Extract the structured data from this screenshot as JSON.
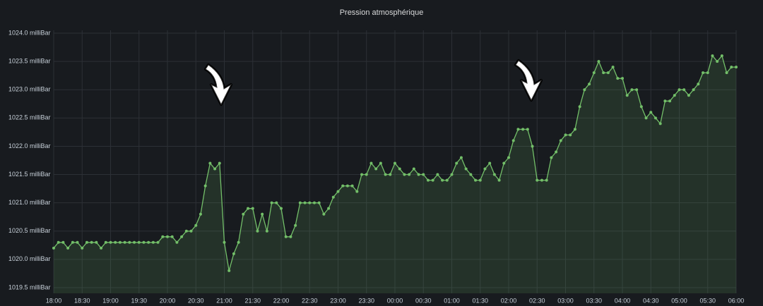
{
  "chart_data": {
    "type": "line",
    "title": "Pression atmosphérique",
    "x": [
      0,
      5,
      10,
      15,
      20,
      25,
      30,
      35,
      40,
      45,
      50,
      55,
      60,
      65,
      70,
      75,
      80,
      85,
      90,
      95,
      100,
      105,
      110,
      115,
      120,
      125,
      130,
      135,
      140,
      145,
      150,
      155,
      160,
      165,
      170,
      175,
      180,
      185,
      190,
      195,
      200,
      205,
      210,
      215,
      220,
      225,
      230,
      235,
      240,
      245,
      250,
      255,
      260,
      265,
      270,
      275,
      280,
      285,
      290,
      295,
      300,
      305,
      310,
      315,
      320,
      325,
      330,
      335,
      340,
      345,
      350,
      355,
      360,
      365,
      370,
      375,
      380,
      385,
      390,
      395,
      400,
      405,
      410,
      415,
      420,
      425,
      430,
      435,
      440,
      445,
      450,
      455,
      460,
      465,
      470,
      475,
      480,
      485,
      490,
      495,
      500,
      505,
      510,
      515,
      520,
      525,
      530,
      535,
      540,
      545,
      550,
      555,
      560,
      565,
      570,
      575,
      580,
      585,
      590,
      595,
      600,
      605,
      610,
      615,
      620,
      625,
      630,
      635,
      640,
      645,
      650,
      655,
      660,
      665,
      670,
      675,
      680,
      685,
      690,
      695,
      700,
      705,
      710,
      715,
      720
    ],
    "values": [
      1020.2,
      1020.3,
      1020.3,
      1020.2,
      1020.3,
      1020.3,
      1020.2,
      1020.3,
      1020.3,
      1020.3,
      1020.2,
      1020.3,
      1020.3,
      1020.3,
      1020.3,
      1020.3,
      1020.3,
      1020.3,
      1020.3,
      1020.3,
      1020.3,
      1020.3,
      1020.3,
      1020.4,
      1020.4,
      1020.4,
      1020.3,
      1020.4,
      1020.5,
      1020.5,
      1020.6,
      1020.8,
      1021.3,
      1021.7,
      1021.6,
      1021.7,
      1020.3,
      1019.8,
      1020.1,
      1020.3,
      1020.8,
      1020.9,
      1020.9,
      1020.5,
      1020.8,
      1020.5,
      1021.0,
      1021.0,
      1020.9,
      1020.4,
      1020.4,
      1020.6,
      1021.0,
      1021.0,
      1021.0,
      1021.0,
      1021.0,
      1020.8,
      1020.9,
      1021.1,
      1021.2,
      1021.3,
      1021.3,
      1021.3,
      1021.2,
      1021.5,
      1021.5,
      1021.7,
      1021.6,
      1021.7,
      1021.5,
      1021.5,
      1021.7,
      1021.6,
      1021.5,
      1021.5,
      1021.6,
      1021.5,
      1021.5,
      1021.4,
      1021.4,
      1021.5,
      1021.4,
      1021.4,
      1021.5,
      1021.7,
      1021.8,
      1021.6,
      1021.5,
      1021.4,
      1021.4,
      1021.6,
      1021.7,
      1021.5,
      1021.4,
      1021.7,
      1021.8,
      1022.1,
      1022.3,
      1022.3,
      1022.3,
      1022.0,
      1021.4,
      1021.4,
      1021.4,
      1021.8,
      1021.9,
      1022.1,
      1022.2,
      1022.2,
      1022.3,
      1022.7,
      1023.0,
      1023.1,
      1023.3,
      1023.5,
      1023.3,
      1023.3,
      1023.4,
      1023.2,
      1023.2,
      1022.9,
      1023.0,
      1023.0,
      1022.7,
      1022.5,
      1022.6,
      1022.5,
      1022.4,
      1022.8,
      1022.8,
      1022.9,
      1023.0,
      1023.0,
      1022.9,
      1023.0,
      1023.1,
      1023.3,
      1023.3,
      1023.6,
      1023.5,
      1023.6,
      1023.3,
      1023.4,
      1023.4
    ],
    "color": "#73bf69",
    "xlim": [
      0,
      720
    ],
    "xticks": [
      {
        "value": 0,
        "label": "18:00"
      },
      {
        "value": 30,
        "label": "18:30"
      },
      {
        "value": 60,
        "label": "19:00"
      },
      {
        "value": 90,
        "label": "19:30"
      },
      {
        "value": 120,
        "label": "20:00"
      },
      {
        "value": 150,
        "label": "20:30"
      },
      {
        "value": 180,
        "label": "21:00"
      },
      {
        "value": 210,
        "label": "21:30"
      },
      {
        "value": 240,
        "label": "22:00"
      },
      {
        "value": 270,
        "label": "22:30"
      },
      {
        "value": 300,
        "label": "23:00"
      },
      {
        "value": 330,
        "label": "23:30"
      },
      {
        "value": 360,
        "label": "00:00"
      },
      {
        "value": 390,
        "label": "00:30"
      },
      {
        "value": 420,
        "label": "01:00"
      },
      {
        "value": 450,
        "label": "01:30"
      },
      {
        "value": 480,
        "label": "02:00"
      },
      {
        "value": 510,
        "label": "02:30"
      },
      {
        "value": 540,
        "label": "03:00"
      },
      {
        "value": 570,
        "label": "03:30"
      },
      {
        "value": 600,
        "label": "04:00"
      },
      {
        "value": 630,
        "label": "04:30"
      },
      {
        "value": 660,
        "label": "05:00"
      },
      {
        "value": 690,
        "label": "05:30"
      },
      {
        "value": 720,
        "label": "06:00"
      }
    ],
    "ylim": [
      1019.4,
      1024.05
    ],
    "yticks": [
      {
        "value": 1019.5,
        "label": "1019.5 milliBar"
      },
      {
        "value": 1020.0,
        "label": "1020.0 milliBar"
      },
      {
        "value": 1020.5,
        "label": "1020.5 milliBar"
      },
      {
        "value": 1021.0,
        "label": "1021.0 milliBar"
      },
      {
        "value": 1021.5,
        "label": "1021.5 milliBar"
      },
      {
        "value": 1022.0,
        "label": "1022.0 milliBar"
      },
      {
        "value": 1022.5,
        "label": "1022.5 milliBar"
      },
      {
        "value": 1023.0,
        "label": "1023.0 milliBar"
      },
      {
        "value": 1023.5,
        "label": "1023.5 milliBar"
      },
      {
        "value": 1024.0,
        "label": "1024.0 milliBar"
      }
    ],
    "grid": true
  }
}
